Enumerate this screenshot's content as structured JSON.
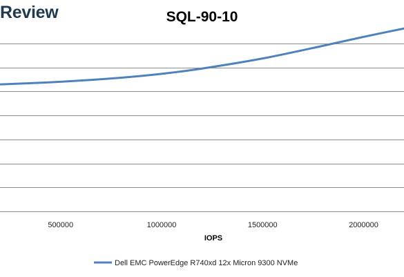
{
  "brand": "Review",
  "chart_data": {
    "type": "line",
    "title": "SQL-90-10",
    "xlabel": "IOPS",
    "ylabel": "",
    "xlim": [
      200000,
      2200000
    ],
    "xticks": [
      500000,
      1000000,
      1500000,
      2000000
    ],
    "xtick_labels": [
      "500000",
      "1000000",
      "1500000",
      "2000000"
    ],
    "ylim": [
      0,
      8
    ],
    "y_gridlines": [
      0,
      1,
      2,
      3,
      4,
      5,
      6,
      7,
      8
    ],
    "grid": true,
    "legend_position": "bottom",
    "series": [
      {
        "name": "Dell EMC PowerEdge R740xd 12x Micron 9300 NVMe",
        "color": "#4f81bd",
        "x": [
          200000,
          500000,
          800000,
          1000000,
          1200000,
          1500000,
          1800000,
          2000000,
          2200000
        ],
        "y": [
          5.29,
          5.4,
          5.57,
          5.73,
          5.95,
          6.37,
          6.9,
          7.27,
          7.62
        ]
      }
    ]
  }
}
